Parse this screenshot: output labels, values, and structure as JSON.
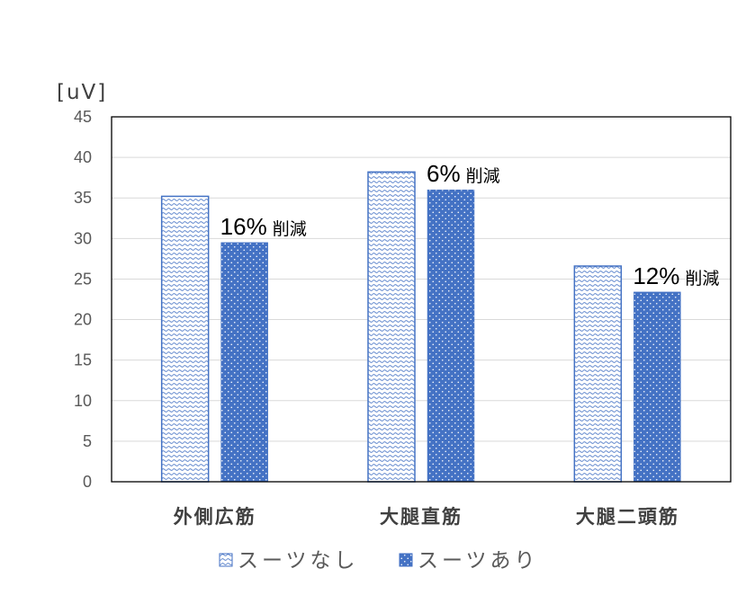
{
  "chart_data": {
    "type": "bar",
    "ylabel": "[uV]",
    "ylim": [
      0,
      45
    ],
    "yticks": [
      0,
      5,
      10,
      15,
      20,
      25,
      30,
      35,
      40,
      45
    ],
    "grid": true,
    "grid_color": "#D9D9D9",
    "plot_border_color": "#000000",
    "legend": "bottom",
    "categories": [
      "外側広筋",
      "大腿直筋",
      "大腿二頭筋"
    ],
    "series": [
      {
        "name": "スーツなし",
        "values": [
          35.2,
          38.2,
          26.6
        ],
        "color": "#4472C4",
        "fill": "wave-pattern"
      },
      {
        "name": "スーツあり",
        "values": [
          29.5,
          36.0,
          23.4
        ],
        "color": "#4472C4",
        "fill": "dot-pattern"
      }
    ],
    "annotations": [
      {
        "category_index": 0,
        "series_index": 1,
        "percent": "16%",
        "label": "削減"
      },
      {
        "category_index": 1,
        "series_index": 1,
        "percent": "6%",
        "label": "削減"
      },
      {
        "category_index": 2,
        "series_index": 1,
        "percent": "12%",
        "label": "削減"
      }
    ]
  }
}
